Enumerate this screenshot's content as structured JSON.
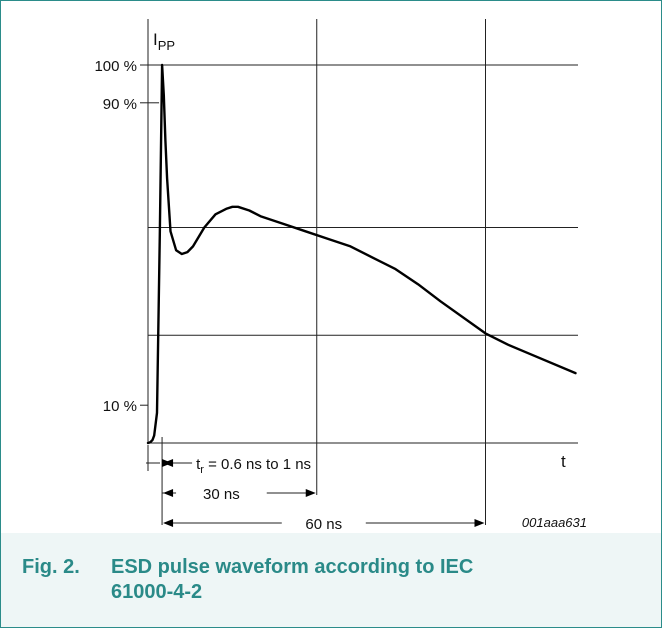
{
  "figure": {
    "number": "Fig. 2.",
    "title": "ESD pulse waveform according to IEC 61000-4-2",
    "code": "001aaa631"
  },
  "chart_data": {
    "type": "line",
    "ylabel": "I",
    "ylabel_sub": "PP",
    "xlabel": "t",
    "y_ticks": [
      "100 %",
      "90 %",
      "10 %"
    ],
    "annotations": {
      "rise_time": {
        "prefix": "t",
        "sub": "r",
        "text": " = 0.6 ns to 1 ns"
      },
      "span_30": "30 ns",
      "span_60": "60 ns"
    },
    "grid": true,
    "series": [
      {
        "x": [
          0,
          0.4,
          0.8,
          1.1,
          1.6,
          2.1,
          2.5,
          2.8,
          3.1,
          3.4,
          4,
          5,
          6,
          7,
          8,
          10,
          12,
          14,
          15,
          16,
          18,
          20,
          24,
          28,
          32,
          36,
          40,
          44,
          48,
          52,
          60,
          64,
          68,
          76
        ],
        "y": [
          0,
          0.2,
          0.8,
          2,
          8,
          55,
          100,
          92,
          80,
          70,
          56,
          51,
          50,
          50.5,
          52,
          57,
          60.5,
          62,
          62.5,
          62.5,
          61.5,
          60,
          58,
          56,
          54,
          52,
          49,
          46,
          42,
          37.5,
          29,
          26,
          23.5,
          18.5
        ]
      }
    ]
  }
}
